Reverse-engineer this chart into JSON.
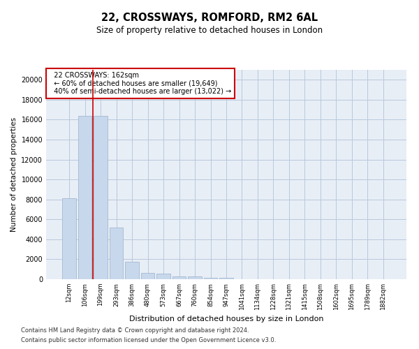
{
  "title1": "22, CROSSWAYS, ROMFORD, RM2 6AL",
  "title2": "Size of property relative to detached houses in London",
  "xlabel": "Distribution of detached houses by size in London",
  "ylabel": "Number of detached properties",
  "categories": [
    "12sqm",
    "106sqm",
    "199sqm",
    "293sqm",
    "386sqm",
    "480sqm",
    "573sqm",
    "667sqm",
    "760sqm",
    "854sqm",
    "947sqm",
    "1041sqm",
    "1134sqm",
    "1228sqm",
    "1321sqm",
    "1415sqm",
    "1508sqm",
    "1602sqm",
    "1695sqm",
    "1789sqm",
    "1882sqm"
  ],
  "bar_heights": [
    8100,
    16400,
    16400,
    5200,
    1750,
    600,
    550,
    300,
    250,
    150,
    120,
    0,
    0,
    0,
    0,
    0,
    0,
    0,
    0,
    0,
    0
  ],
  "bar_color": "#c8d8ec",
  "bar_edgecolor": "#9ab0cc",
  "red_line_x": 1.5,
  "annotation_title": "22 CROSSWAYS: 162sqm",
  "annotation_line1": "← 60% of detached houses are smaller (19,649)",
  "annotation_line2": "40% of semi-detached houses are larger (13,022) →",
  "annotation_box_color": "#ffffff",
  "annotation_box_edgecolor": "#cc0000",
  "ylim_max": 21000,
  "yticks": [
    0,
    2000,
    4000,
    6000,
    8000,
    10000,
    12000,
    14000,
    16000,
    18000,
    20000
  ],
  "footer1": "Contains HM Land Registry data © Crown copyright and database right 2024.",
  "footer2": "Contains public sector information licensed under the Open Government Licence v3.0.",
  "background_color": "#ffffff",
  "plot_bg_color": "#e8eef6",
  "grid_color": "#b8c8dc"
}
